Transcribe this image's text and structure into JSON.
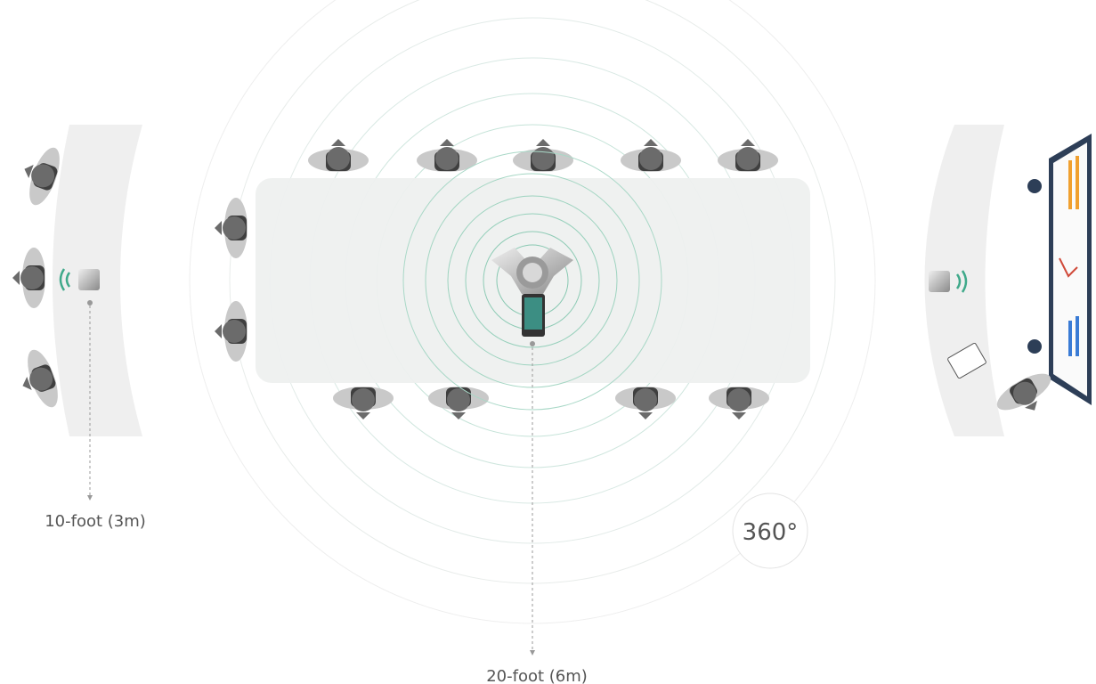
{
  "labels": {
    "left_range": "10-foot (3m)",
    "center_range": "20-foot (6m)",
    "coverage": "360°"
  }
}
